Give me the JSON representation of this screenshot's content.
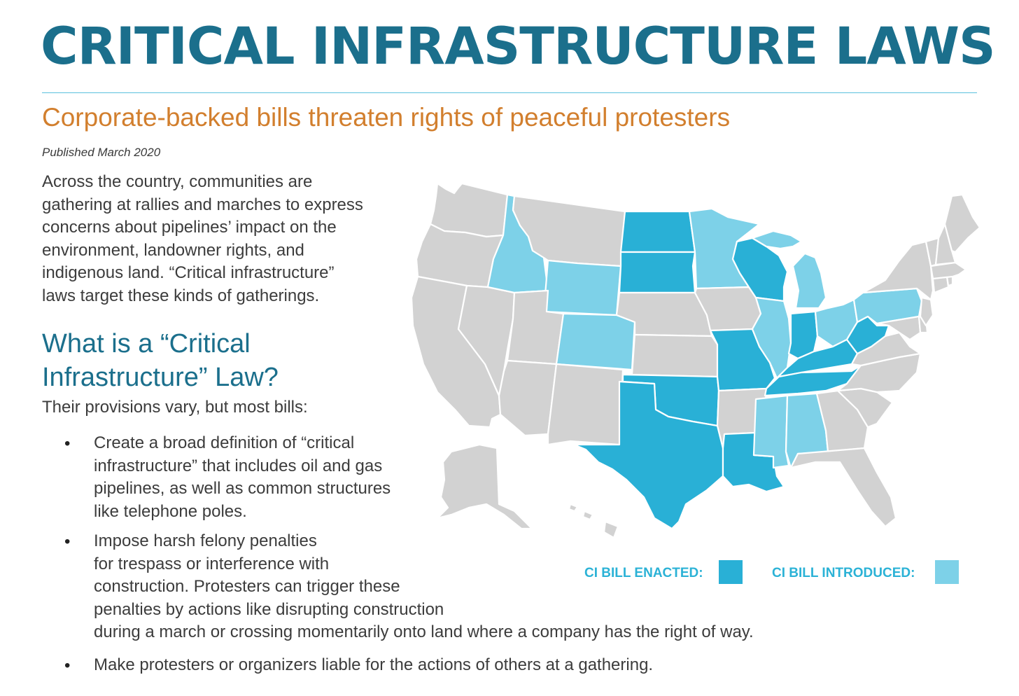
{
  "header": {
    "title": "CRITICAL INFRASTRUCTURE LAWS",
    "subtitle": "Corporate-backed bills threaten rights of peaceful protesters",
    "published": "Published March 2020"
  },
  "intro": {
    "lines": [
      "Across the country, communities are",
      "gathering at rallies and marches to express",
      "concerns about pipelines’ impact on the",
      "environment, landowner rights, and",
      "indigenous land. “Critical infrastructure”",
      "laws target these kinds of gatherings."
    ]
  },
  "section": {
    "heading_line1": "What is a “Critical",
    "heading_line2": "Infrastructure” Law?",
    "provisions_lead": "Their provisions vary, but most bills:",
    "bullet_symbol": "•",
    "bullets": [
      {
        "lines": [
          "Create a broad definition of “critical",
          "infrastructure” that includes oil and gas",
          "pipelines, as well as common structures",
          "like telephone poles."
        ]
      },
      {
        "lines": [
          "Impose harsh felony penalties",
          "for trespass or interference with",
          "construction. Protesters can trigger these",
          "penalties by actions like disrupting construction",
          "during a march or crossing momentarily onto land where a company has the right of way."
        ]
      },
      {
        "lines": [
          "Make protesters or organizers liable for the actions of others at a gathering."
        ]
      }
    ]
  },
  "map": {
    "colors": {
      "enacted": "#29b0d6",
      "introduced": "#7dd1e8",
      "none": "#d2d2d2",
      "border": "#ffffff"
    },
    "legend": {
      "enacted_label": "CI BILL ENACTED:",
      "introduced_label": "CI BILL INTRODUCED:"
    },
    "states": [
      {
        "name": "Washington",
        "status": "none"
      },
      {
        "name": "Oregon",
        "status": "none"
      },
      {
        "name": "California",
        "status": "none"
      },
      {
        "name": "Nevada",
        "status": "none"
      },
      {
        "name": "Idaho",
        "status": "introduced"
      },
      {
        "name": "Montana",
        "status": "none"
      },
      {
        "name": "Wyoming",
        "status": "introduced"
      },
      {
        "name": "Utah",
        "status": "none"
      },
      {
        "name": "Arizona",
        "status": "none"
      },
      {
        "name": "Colorado",
        "status": "introduced"
      },
      {
        "name": "New Mexico",
        "status": "none"
      },
      {
        "name": "North Dakota",
        "status": "enacted"
      },
      {
        "name": "South Dakota",
        "status": "enacted"
      },
      {
        "name": "Nebraska",
        "status": "none"
      },
      {
        "name": "Kansas",
        "status": "none"
      },
      {
        "name": "Oklahoma",
        "status": "enacted"
      },
      {
        "name": "Texas",
        "status": "enacted"
      },
      {
        "name": "Minnesota",
        "status": "introduced"
      },
      {
        "name": "Iowa",
        "status": "none"
      },
      {
        "name": "Missouri",
        "status": "enacted"
      },
      {
        "name": "Arkansas",
        "status": "none"
      },
      {
        "name": "Louisiana",
        "status": "enacted"
      },
      {
        "name": "Wisconsin",
        "status": "enacted"
      },
      {
        "name": "Illinois",
        "status": "introduced"
      },
      {
        "name": "Michigan",
        "status": "introduced"
      },
      {
        "name": "Indiana",
        "status": "enacted"
      },
      {
        "name": "Ohio",
        "status": "introduced"
      },
      {
        "name": "Kentucky",
        "status": "enacted"
      },
      {
        "name": "Tennessee",
        "status": "enacted"
      },
      {
        "name": "Mississippi",
        "status": "introduced"
      },
      {
        "name": "Alabama",
        "status": "introduced"
      },
      {
        "name": "Georgia",
        "status": "none"
      },
      {
        "name": "Florida",
        "status": "none"
      },
      {
        "name": "South Carolina",
        "status": "none"
      },
      {
        "name": "North Carolina",
        "status": "none"
      },
      {
        "name": "Virginia",
        "status": "none"
      },
      {
        "name": "West Virginia",
        "status": "enacted"
      },
      {
        "name": "Pennsylvania",
        "status": "introduced"
      },
      {
        "name": "Maryland",
        "status": "none"
      },
      {
        "name": "Delaware",
        "status": "none"
      },
      {
        "name": "New Jersey",
        "status": "none"
      },
      {
        "name": "New York",
        "status": "none"
      },
      {
        "name": "Connecticut",
        "status": "none"
      },
      {
        "name": "Rhode Island",
        "status": "none"
      },
      {
        "name": "Massachusetts",
        "status": "none"
      },
      {
        "name": "Vermont",
        "status": "none"
      },
      {
        "name": "New Hampshire",
        "status": "none"
      },
      {
        "name": "Maine",
        "status": "none"
      },
      {
        "name": "Alaska",
        "status": "none"
      },
      {
        "name": "Hawaii",
        "status": "none"
      }
    ]
  }
}
